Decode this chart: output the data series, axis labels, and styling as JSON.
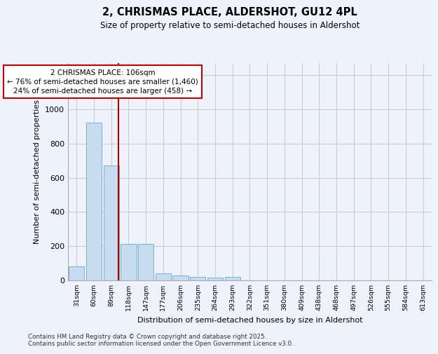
{
  "title_line1": "2, CHRISMAS PLACE, ALDERSHOT, GU12 4PL",
  "title_line2": "Size of property relative to semi-detached houses in Aldershot",
  "xlabel": "Distribution of semi-detached houses by size in Aldershot",
  "ylabel": "Number of semi-detached properties",
  "categories": [
    "31sqm",
    "60sqm",
    "89sqm",
    "118sqm",
    "147sqm",
    "177sqm",
    "206sqm",
    "235sqm",
    "264sqm",
    "293sqm",
    "322sqm",
    "351sqm",
    "380sqm",
    "409sqm",
    "438sqm",
    "468sqm",
    "497sqm",
    "526sqm",
    "555sqm",
    "584sqm",
    "613sqm"
  ],
  "values": [
    80,
    920,
    670,
    215,
    215,
    40,
    30,
    20,
    15,
    20,
    0,
    0,
    0,
    0,
    0,
    0,
    0,
    0,
    0,
    0,
    0
  ],
  "bar_color": "#c8dcf0",
  "bar_edge_color": "#7bafd4",
  "grid_color": "#cccccc",
  "annotation_box_color": "#cc0000",
  "annotation_text": "2 CHRISMAS PLACE: 106sqm\n← 76% of semi-detached houses are smaller (1,460)\n24% of semi-detached houses are larger (458) →",
  "ylim": [
    0,
    1270
  ],
  "yticks": [
    0,
    200,
    400,
    600,
    800,
    1000,
    1200
  ],
  "footnote_line1": "Contains HM Land Registry data © Crown copyright and database right 2025.",
  "footnote_line2": "Contains public sector information licensed under the Open Government Licence v3.0.",
  "bg_color": "#eef2fa",
  "plot_bg_color": "#eef2fa"
}
